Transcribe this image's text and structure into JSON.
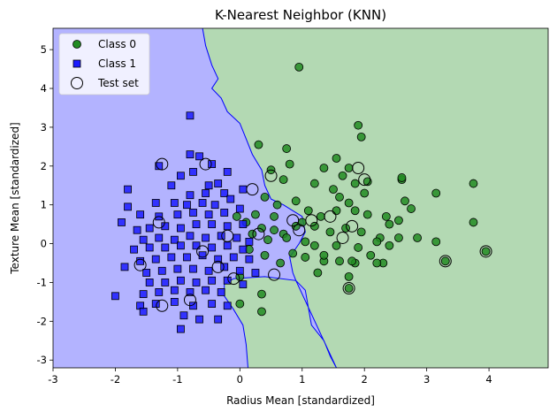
{
  "chart_data": {
    "type": "scatter",
    "title": "K-Nearest Neighbor (KNN)",
    "xlabel": "Radius Mean [standardized]",
    "ylabel": "Texture Mean [standardized]",
    "xlim": [
      -3,
      4.95
    ],
    "ylim": [
      -3.2,
      5.55
    ],
    "xticks": [
      -3,
      -2,
      -1,
      0,
      1,
      2,
      3,
      4
    ],
    "yticks": [
      -3,
      -2,
      -1,
      0,
      1,
      2,
      3,
      4,
      5
    ],
    "grid": false,
    "legend_position": "top-left",
    "regions": {
      "class0_color": "#b3d9b3",
      "class1_color": "#b3b3ff",
      "boundary_color": "#0000ff",
      "boundary": [
        [
          0.13,
          -3.2
        ],
        [
          0.1,
          -2.6
        ],
        [
          0.05,
          -2.1
        ],
        [
          -0.1,
          -1.7
        ],
        [
          -0.25,
          -1.35
        ],
        [
          -0.25,
          -1.05
        ],
        [
          -0.1,
          -0.9
        ],
        [
          0.4,
          -0.85
        ],
        [
          0.9,
          -0.95
        ],
        [
          1.05,
          -1.2
        ],
        [
          1.1,
          -1.65
        ],
        [
          1.15,
          -2.1
        ],
        [
          1.35,
          -2.5
        ],
        [
          1.45,
          -2.9
        ],
        [
          1.55,
          -3.2
        ]
      ],
      "class1_top_boundary": [
        [
          -3,
          5.55
        ],
        [
          -0.6,
          5.55
        ],
        [
          -0.55,
          5.1
        ],
        [
          -0.45,
          4.6
        ],
        [
          -0.35,
          4.25
        ],
        [
          -0.45,
          4.0
        ],
        [
          -0.3,
          3.75
        ],
        [
          -0.2,
          3.4
        ],
        [
          0.0,
          3.1
        ],
        [
          0.1,
          2.7
        ],
        [
          0.2,
          2.3
        ],
        [
          0.35,
          1.9
        ],
        [
          0.4,
          1.5
        ],
        [
          0.5,
          1.15
        ],
        [
          0.7,
          1.0
        ],
        [
          0.85,
          0.85
        ],
        [
          1.0,
          0.7
        ],
        [
          1.05,
          0.3
        ],
        [
          0.95,
          0.0
        ],
        [
          0.8,
          -0.35
        ],
        [
          0.85,
          -0.75
        ],
        [
          0.9,
          -0.95
        ]
      ]
    },
    "series": [
      {
        "name": "Class 0",
        "marker": "circle",
        "color": "#228B22",
        "points": [
          [
            0.95,
            4.55
          ],
          [
            0.3,
            2.55
          ],
          [
            0.75,
            2.45
          ],
          [
            1.9,
            3.05
          ],
          [
            1.95,
            2.75
          ],
          [
            1.55,
            2.2
          ],
          [
            1.75,
            1.95
          ],
          [
            1.35,
            1.95
          ],
          [
            0.8,
            2.05
          ],
          [
            0.5,
            1.9
          ],
          [
            0.7,
            1.65
          ],
          [
            1.2,
            1.55
          ],
          [
            1.5,
            1.4
          ],
          [
            1.65,
            1.75
          ],
          [
            1.85,
            1.55
          ],
          [
            2.05,
            1.6
          ],
          [
            2.0,
            1.3
          ],
          [
            2.6,
            1.65
          ],
          [
            2.6,
            1.7
          ],
          [
            2.65,
            1.1
          ],
          [
            3.15,
            1.3
          ],
          [
            3.75,
            1.55
          ],
          [
            0.4,
            1.2
          ],
          [
            0.6,
            1.0
          ],
          [
            0.9,
            1.1
          ],
          [
            1.1,
            0.85
          ],
          [
            1.3,
            0.7
          ],
          [
            1.55,
            0.85
          ],
          [
            1.85,
            0.85
          ],
          [
            2.05,
            0.75
          ],
          [
            2.35,
            0.7
          ],
          [
            2.55,
            0.6
          ],
          [
            1.0,
            0.55
          ],
          [
            0.55,
            0.7
          ],
          [
            0.35,
            0.4
          ],
          [
            0.2,
            0.25
          ],
          [
            0.45,
            0.1
          ],
          [
            0.7,
            0.25
          ],
          [
            0.9,
            0.45
          ],
          [
            1.2,
            0.45
          ],
          [
            1.45,
            0.3
          ],
          [
            1.7,
            0.4
          ],
          [
            1.95,
            0.3
          ],
          [
            2.25,
            0.15
          ],
          [
            2.55,
            0.15
          ],
          [
            2.85,
            0.15
          ],
          [
            3.15,
            0.05
          ],
          [
            3.75,
            0.55
          ],
          [
            1.2,
            -0.05
          ],
          [
            1.55,
            -0.05
          ],
          [
            1.9,
            -0.1
          ],
          [
            2.2,
            0.05
          ],
          [
            2.4,
            -0.05
          ],
          [
            0.85,
            -0.25
          ],
          [
            1.05,
            -0.35
          ],
          [
            1.35,
            -0.45
          ],
          [
            1.6,
            -0.45
          ],
          [
            1.85,
            -0.5
          ],
          [
            2.1,
            -0.3
          ],
          [
            2.3,
            -0.5
          ],
          [
            0.65,
            -0.5
          ],
          [
            0.4,
            -0.3
          ],
          [
            0.15,
            -0.15
          ],
          [
            1.25,
            -0.75
          ],
          [
            1.75,
            -0.85
          ],
          [
            1.8,
            -0.45
          ],
          [
            2.2,
            -0.5
          ],
          [
            3.3,
            -0.45
          ],
          [
            3.95,
            -0.2
          ],
          [
            1.75,
            -1.15
          ],
          [
            0.35,
            -1.3
          ],
          [
            0.35,
            -1.75
          ],
          [
            0.0,
            -1.55
          ],
          [
            0.0,
            -0.85
          ],
          [
            1.35,
            -0.3
          ],
          [
            1.05,
            0.05
          ],
          [
            0.75,
            0.15
          ],
          [
            0.55,
            0.35
          ],
          [
            0.25,
            0.75
          ],
          [
            0.1,
            0.55
          ],
          [
            -0.05,
            0.7
          ],
          [
            1.6,
            1.2
          ],
          [
            1.75,
            1.05
          ],
          [
            2.4,
            0.5
          ],
          [
            2.75,
            0.9
          ]
        ]
      },
      {
        "name": "Class 1",
        "marker": "square",
        "color": "#1a1aff",
        "points": [
          [
            -0.8,
            3.3
          ],
          [
            -0.8,
            2.3
          ],
          [
            -0.65,
            2.25
          ],
          [
            -0.45,
            2.05
          ],
          [
            -0.2,
            1.85
          ],
          [
            -1.3,
            2.0
          ],
          [
            -0.75,
            1.85
          ],
          [
            -0.95,
            1.75
          ],
          [
            -1.1,
            1.5
          ],
          [
            -0.5,
            1.5
          ],
          [
            -0.35,
            1.55
          ],
          [
            -1.8,
            1.4
          ],
          [
            -0.8,
            1.25
          ],
          [
            -0.55,
            1.3
          ],
          [
            -0.25,
            1.3
          ],
          [
            0.05,
            1.4
          ],
          [
            -1.35,
            1.05
          ],
          [
            -1.05,
            1.05
          ],
          [
            -0.85,
            1.0
          ],
          [
            -0.6,
            1.05
          ],
          [
            -0.4,
            1.0
          ],
          [
            -0.15,
            1.15
          ],
          [
            -1.6,
            0.75
          ],
          [
            -1.3,
            0.7
          ],
          [
            -1.0,
            0.75
          ],
          [
            -0.75,
            0.8
          ],
          [
            -0.5,
            0.75
          ],
          [
            -0.25,
            0.8
          ],
          [
            0.0,
            0.9
          ],
          [
            -1.65,
            0.35
          ],
          [
            -1.45,
            0.4
          ],
          [
            -1.2,
            0.45
          ],
          [
            -0.95,
            0.4
          ],
          [
            -0.7,
            0.5
          ],
          [
            -0.45,
            0.5
          ],
          [
            -0.2,
            0.45
          ],
          [
            0.05,
            0.5
          ],
          [
            -1.55,
            0.1
          ],
          [
            -1.3,
            0.15
          ],
          [
            -1.05,
            0.1
          ],
          [
            -0.8,
            0.2
          ],
          [
            -0.55,
            0.15
          ],
          [
            -0.3,
            0.2
          ],
          [
            -0.05,
            0.15
          ],
          [
            0.15,
            0.05
          ],
          [
            -1.7,
            -0.15
          ],
          [
            -1.45,
            -0.1
          ],
          [
            -1.2,
            -0.1
          ],
          [
            -0.95,
            -0.05
          ],
          [
            -0.7,
            -0.05
          ],
          [
            -0.45,
            -0.1
          ],
          [
            -0.2,
            -0.05
          ],
          [
            0.05,
            -0.15
          ],
          [
            -1.6,
            -0.45
          ],
          [
            -1.35,
            -0.4
          ],
          [
            -1.1,
            -0.35
          ],
          [
            -0.85,
            -0.35
          ],
          [
            -0.6,
            -0.3
          ],
          [
            -0.35,
            -0.4
          ],
          [
            -0.1,
            -0.35
          ],
          [
            0.15,
            -0.4
          ],
          [
            -1.5,
            -0.75
          ],
          [
            -1.25,
            -0.7
          ],
          [
            -1.0,
            -0.65
          ],
          [
            -0.75,
            -0.65
          ],
          [
            -0.5,
            -0.7
          ],
          [
            -0.25,
            -0.6
          ],
          [
            0.0,
            -0.7
          ],
          [
            0.25,
            -0.75
          ],
          [
            -1.45,
            -1.0
          ],
          [
            -1.2,
            -1.0
          ],
          [
            -0.95,
            -0.95
          ],
          [
            -0.7,
            -1.0
          ],
          [
            -0.45,
            -0.95
          ],
          [
            -0.2,
            -0.95
          ],
          [
            0.05,
            -1.05
          ],
          [
            -1.55,
            -1.3
          ],
          [
            -1.3,
            -1.25
          ],
          [
            -1.05,
            -1.2
          ],
          [
            -0.8,
            -1.25
          ],
          [
            -0.55,
            -1.2
          ],
          [
            -0.3,
            -1.25
          ],
          [
            -1.6,
            -1.6
          ],
          [
            -1.35,
            -1.55
          ],
          [
            -1.05,
            -1.5
          ],
          [
            -0.75,
            -1.6
          ],
          [
            -0.45,
            -1.55
          ],
          [
            -0.2,
            -1.6
          ],
          [
            -1.55,
            -1.75
          ],
          [
            -0.9,
            -1.85
          ],
          [
            -0.65,
            -1.95
          ],
          [
            -0.35,
            -1.95
          ],
          [
            -0.95,
            -2.2
          ],
          [
            -2.0,
            -1.35
          ],
          [
            -1.85,
            -0.6
          ],
          [
            -1.9,
            0.55
          ],
          [
            -1.8,
            0.95
          ]
        ]
      }
    ],
    "test_set": {
      "name": "Test set",
      "marker": "open-circle",
      "points": [
        [
          -1.25,
          2.05
        ],
        [
          -0.55,
          2.05
        ],
        [
          0.5,
          1.75
        ],
        [
          0.2,
          1.4
        ],
        [
          1.9,
          1.95
        ],
        [
          2.0,
          1.65
        ],
        [
          -1.3,
          0.55
        ],
        [
          0.85,
          0.6
        ],
        [
          1.15,
          0.6
        ],
        [
          1.45,
          0.7
        ],
        [
          1.8,
          0.45
        ],
        [
          0.95,
          0.35
        ],
        [
          1.65,
          0.15
        ],
        [
          0.3,
          0.25
        ],
        [
          -0.2,
          0.2
        ],
        [
          -0.6,
          -0.2
        ],
        [
          -0.35,
          -0.6
        ],
        [
          0.55,
          -0.8
        ],
        [
          -1.6,
          -0.55
        ],
        [
          -1.25,
          -1.6
        ],
        [
          -0.8,
          -1.45
        ],
        [
          1.75,
          -1.15
        ],
        [
          3.3,
          -0.45
        ],
        [
          3.95,
          -0.2
        ],
        [
          -0.1,
          -0.9
        ]
      ]
    },
    "legend": [
      {
        "label": "Class 0",
        "marker": "circle",
        "color": "#228B22"
      },
      {
        "label": "Class 1",
        "marker": "square",
        "color": "#1a1aff"
      },
      {
        "label": "Test set",
        "marker": "open-circle",
        "color": "#000000"
      }
    ]
  }
}
